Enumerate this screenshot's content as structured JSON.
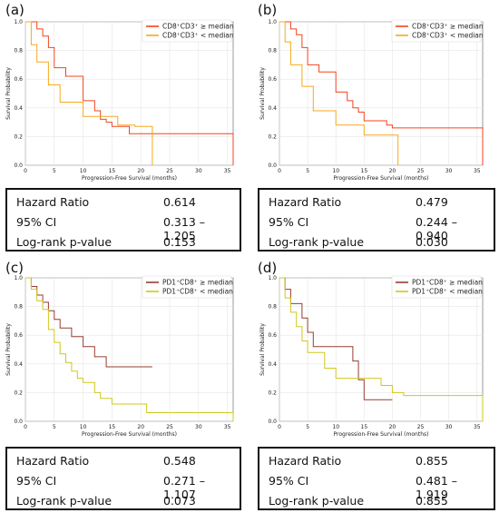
{
  "colors": {
    "red": "#f4431f",
    "orange": "#f7a91b",
    "maroon": "#943e32",
    "yellow": "#cfc81d",
    "grid": "#e6e6e6",
    "axis": "#555555"
  },
  "chart_data": [
    {
      "panel_label": "(a)",
      "type": "line",
      "xlabel": "Progression-Free Survival (months)",
      "ylabel": "Survival Probability",
      "xlim": [
        0,
        36
      ],
      "ylim": [
        0,
        1.0
      ],
      "xticks": [
        "0",
        "5",
        "10",
        "15",
        "20",
        "25",
        "30",
        "35"
      ],
      "yticks": [
        "0.0",
        "0.2",
        "0.4",
        "0.6",
        "0.8",
        "1.0"
      ],
      "grid": true,
      "legend_position": "top-right",
      "series": [
        {
          "name": "CD8⁺CD3⁺ ≥ median",
          "color_key": "red",
          "x": [
            0,
            1,
            2,
            3,
            4,
            5,
            6,
            7,
            9,
            10,
            12,
            13,
            14,
            15,
            16,
            18,
            22,
            36
          ],
          "y": [
            1.0,
            1.0,
            0.95,
            0.9,
            0.82,
            0.68,
            0.68,
            0.62,
            0.62,
            0.45,
            0.38,
            0.32,
            0.3,
            0.27,
            0.27,
            0.22,
            0.22,
            0.0
          ]
        },
        {
          "name": "CD8⁺CD3⁺ < median",
          "color_key": "orange",
          "x": [
            0,
            1,
            2,
            3,
            4,
            6,
            8,
            10,
            16,
            19,
            20,
            22
          ],
          "y": [
            1.0,
            0.84,
            0.72,
            0.72,
            0.56,
            0.44,
            0.44,
            0.34,
            0.28,
            0.27,
            0.27,
            0.0
          ]
        }
      ],
      "stats": {
        "hr_label": "Hazard Ratio",
        "hr": "0.614",
        "ci_label": "95% CI",
        "ci": "0.313 – 1.205",
        "p_label": "Log-rank p-value",
        "p": "0.153"
      }
    },
    {
      "panel_label": "(b)",
      "type": "line",
      "xlabel": "Progression-Free Survival (months)",
      "ylabel": "Survival Probability",
      "xlim": [
        0,
        36
      ],
      "ylim": [
        0,
        1.0
      ],
      "xticks": [
        "0",
        "5",
        "10",
        "15",
        "20",
        "25",
        "30",
        "35"
      ],
      "yticks": [
        "0.0",
        "0.2",
        "0.4",
        "0.6",
        "0.8",
        "1.0"
      ],
      "grid": true,
      "legend_position": "top-right",
      "series": [
        {
          "name": "CD8⁺CD3⁺ ≥ median",
          "color_key": "red",
          "x": [
            0,
            1,
            2,
            3,
            4,
            5,
            7,
            9,
            10,
            12,
            13,
            14,
            15,
            16,
            19,
            20,
            22,
            36
          ],
          "y": [
            1.0,
            1.0,
            0.95,
            0.91,
            0.82,
            0.7,
            0.65,
            0.65,
            0.51,
            0.45,
            0.4,
            0.37,
            0.31,
            0.31,
            0.28,
            0.26,
            0.26,
            0.0
          ]
        },
        {
          "name": "CD8⁺CD3⁺ < median",
          "color_key": "orange",
          "x": [
            0,
            1,
            2,
            3,
            4,
            6,
            8,
            10,
            14,
            15,
            18,
            21
          ],
          "y": [
            1.0,
            0.86,
            0.7,
            0.7,
            0.55,
            0.38,
            0.38,
            0.28,
            0.28,
            0.21,
            0.21,
            0.0
          ]
        }
      ],
      "stats": {
        "hr_label": "Hazard Ratio",
        "hr": "0.479",
        "ci_label": "95% CI",
        "ci": "0.244 – 0.940",
        "p_label": "Log-rank p-value",
        "p": "0.030"
      }
    },
    {
      "panel_label": "(c)",
      "type": "line",
      "xlabel": "Progression-Free Survival (months)",
      "ylabel": "Survival Probability",
      "xlim": [
        0,
        36
      ],
      "ylim": [
        0,
        1.0
      ],
      "xticks": [
        "0",
        "5",
        "10",
        "15",
        "20",
        "25",
        "30",
        "35"
      ],
      "yticks": [
        "0.0",
        "0.2",
        "0.4",
        "0.6",
        "0.8",
        "1.0"
      ],
      "grid": true,
      "legend_position": "top-right",
      "series": [
        {
          "name": "PD1⁺CD8⁺ ≥ median",
          "color_key": "maroon",
          "x": [
            0,
            1,
            2,
            3,
            4,
            5,
            6,
            8,
            10,
            12,
            14,
            15,
            16,
            17,
            20,
            22
          ],
          "y": [
            1.0,
            0.94,
            0.88,
            0.83,
            0.77,
            0.71,
            0.65,
            0.59,
            0.52,
            0.45,
            0.38,
            0.38,
            0.38,
            0.38,
            0.38,
            0.38
          ]
        },
        {
          "name": "PD1⁺CD8⁺ < median",
          "color_key": "yellow",
          "x": [
            0,
            1,
            2,
            3,
            4,
            5,
            6,
            7,
            8,
            9,
            10,
            12,
            13,
            15,
            20,
            21,
            36
          ],
          "y": [
            1.0,
            0.92,
            0.84,
            0.78,
            0.64,
            0.55,
            0.47,
            0.41,
            0.35,
            0.3,
            0.27,
            0.2,
            0.16,
            0.12,
            0.12,
            0.06,
            0.0
          ]
        }
      ],
      "stats": {
        "hr_label": "Hazard Ratio",
        "hr": "0.548",
        "ci_label": "95% CI",
        "ci": "0.271 – 1.107",
        "p_label": "Log-rank p-value",
        "p": "0.073"
      }
    },
    {
      "panel_label": "(d)",
      "type": "line",
      "xlabel": "Progression-Free Survival (months)",
      "ylabel": "Survival Probability",
      "xlim": [
        0,
        36
      ],
      "ylim": [
        0,
        1.0
      ],
      "xticks": [
        "0",
        "5",
        "10",
        "15",
        "20",
        "25",
        "30",
        "35"
      ],
      "yticks": [
        "0.0",
        "0.2",
        "0.4",
        "0.6",
        "0.8",
        "1.0"
      ],
      "grid": true,
      "legend_position": "top-right",
      "series": [
        {
          "name": "PD1⁺CD8⁺ ≥ median",
          "color_key": "maroon",
          "x": [
            0,
            1,
            2,
            3,
            4,
            5,
            6,
            10,
            13,
            14,
            15,
            16,
            19,
            20
          ],
          "y": [
            1.0,
            0.92,
            0.82,
            0.82,
            0.72,
            0.62,
            0.52,
            0.52,
            0.42,
            0.29,
            0.15,
            0.15,
            0.15,
            0.15
          ]
        },
        {
          "name": "PD1⁺CD8⁺ < median",
          "color_key": "yellow",
          "x": [
            0,
            1,
            2,
            3,
            4,
            5,
            6,
            8,
            10,
            15,
            18,
            20,
            22,
            36
          ],
          "y": [
            1.0,
            0.86,
            0.76,
            0.66,
            0.56,
            0.48,
            0.48,
            0.37,
            0.3,
            0.3,
            0.25,
            0.2,
            0.18,
            0.0
          ]
        }
      ],
      "stats": {
        "hr_label": "Hazard Ratio",
        "hr": "0.855",
        "ci_label": "95% CI",
        "ci": "0.481 – 1.919",
        "p_label": "Log-rank p-value",
        "p": "0.855"
      }
    }
  ]
}
